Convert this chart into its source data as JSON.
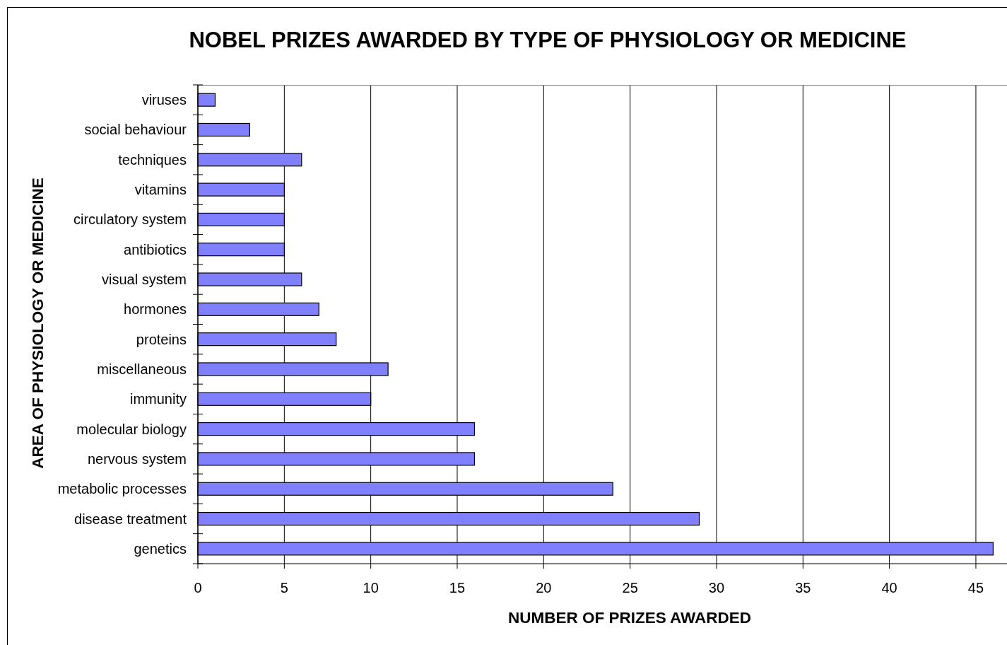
{
  "chart_data": {
    "type": "bar",
    "orientation": "horizontal",
    "title": "NOBEL PRIZES AWARDED BY TYPE OF PHYSIOLOGY OR MEDICINE",
    "xlabel": "NUMBER OF PRIZES AWARDED",
    "ylabel": "AREA OF PHYSIOLOGY OR MEDICINE",
    "categories": [
      "viruses",
      "social behaviour",
      "techniques",
      "vitamins",
      "circulatory system",
      "antibiotics",
      "visual system",
      "hormones",
      "proteins",
      "miscellaneous",
      "immunity",
      "molecular biology",
      "nervous system",
      "metabolic processes",
      "disease treatment",
      "genetics"
    ],
    "values": [
      1,
      3,
      6,
      5,
      5,
      5,
      6,
      7,
      8,
      11,
      10,
      16,
      16,
      24,
      29,
      46
    ],
    "color": "#8080ff",
    "xlim": [
      0,
      46.8
    ],
    "xticks": [
      0,
      5,
      10,
      15,
      20,
      25,
      30,
      35,
      40,
      45
    ],
    "grid": "x"
  }
}
